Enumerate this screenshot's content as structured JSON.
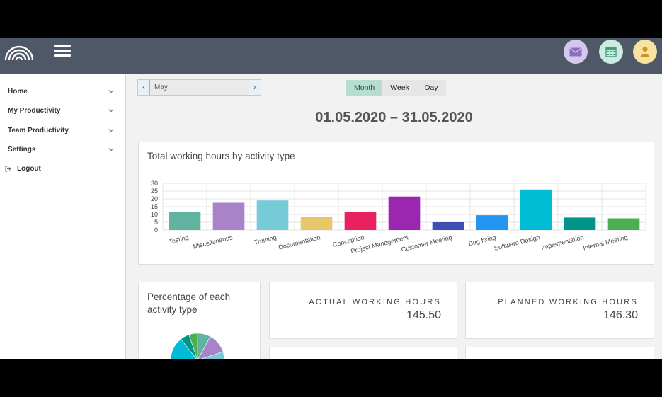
{
  "sidebar": {
    "items": [
      {
        "label": "Home"
      },
      {
        "label": "My Productivity"
      },
      {
        "label": "Team Productivity"
      },
      {
        "label": "Settings"
      }
    ],
    "logout_label": "Logout"
  },
  "header": {
    "icons": [
      "logo-icon",
      "menu-icon",
      "mail-icon",
      "calendar-icon",
      "user-icon"
    ],
    "colors": {
      "bar": "#4f5866",
      "mail": "#d6c8ec",
      "calendar": "#cdebe0",
      "user": "#f7e2a0"
    }
  },
  "toolbar": {
    "month_value": "May",
    "prev_glyph": "‹",
    "next_glyph": "›",
    "views": [
      "Month",
      "Week",
      "Day"
    ],
    "active_view": "Month"
  },
  "date_range": "01.05.2020 – 31.05.2020",
  "chart_card": {
    "title": "Total working hours by activity type"
  },
  "chart_data": {
    "type": "bar",
    "title": "Total working hours by activity type",
    "categories": [
      "Testing",
      "Miscellaneous",
      "Training",
      "Documentation",
      "Conception",
      "Project Management",
      "Customer Meeting",
      "Bug fixing",
      "Software Design",
      "Implementation",
      "Internal Meeting"
    ],
    "values": [
      11.5,
      17.5,
      19,
      8.5,
      11.5,
      21.5,
      5,
      9.5,
      26,
      8,
      7.5
    ],
    "colors": [
      "#5fb39f",
      "#a883c8",
      "#76ccd6",
      "#e8c66a",
      "#e8225e",
      "#9b27b0",
      "#3d4fb3",
      "#2396f3",
      "#00bcd4",
      "#009687",
      "#4caf50"
    ],
    "yticks": [
      0,
      5,
      10,
      15,
      20,
      25,
      30
    ],
    "ylim": [
      0,
      30
    ],
    "grid": true
  },
  "pie_card": {
    "title": "Percentage of each activity type",
    "colors": [
      "#5fb39f",
      "#a883c8",
      "#76ccd6",
      "#e8c66a",
      "#e8225e",
      "#9b27b0",
      "#3d4fb3",
      "#2396f3",
      "#00bcd4",
      "#009687",
      "#4caf50"
    ]
  },
  "kpi": {
    "actual": {
      "label": "ACTUAL WORKING HOURS",
      "value": "145.50"
    },
    "planned": {
      "label": "PLANNED WORKING HOURS",
      "value": "146.30"
    }
  }
}
